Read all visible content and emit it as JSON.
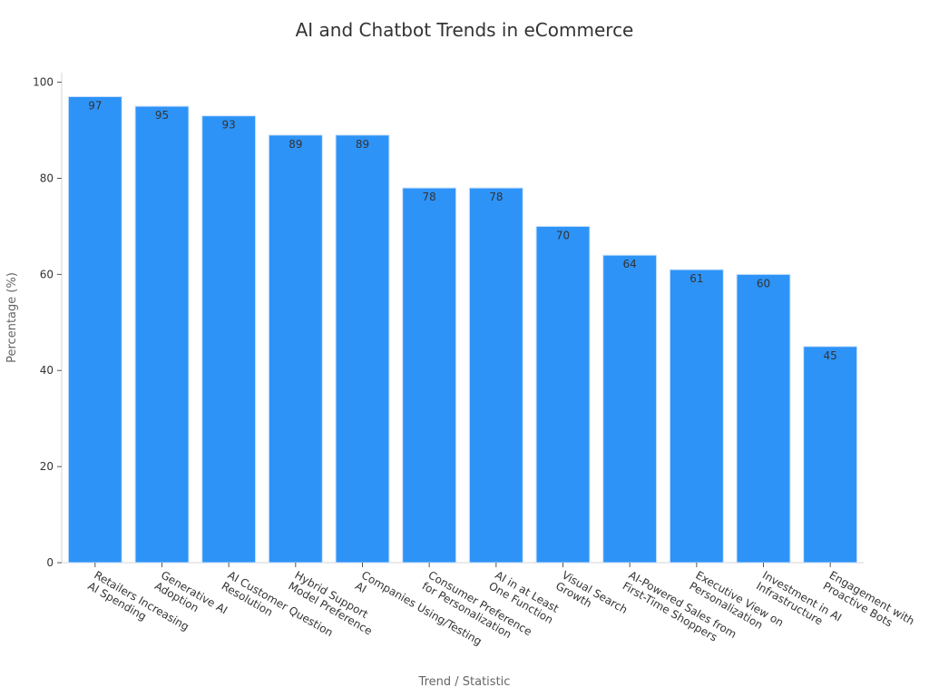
{
  "chart_data": {
    "type": "bar",
    "title": "AI and Chatbot Trends in eCommerce",
    "x_label": "Trend / Statistic",
    "y_label": "Percentage (%)",
    "categories": [
      "Retailers Increasing\nAI Spending",
      "Generative AI\nAdoption",
      "AI Customer Question\nResolution",
      "Hybrid Support\nModel Preference",
      "Companies Using/Testing\nAI",
      "Consumer Preference\nfor Personalization",
      "AI in at Least\nOne Function",
      "Visual Search\nGrowth",
      "AI-Powered Sales from\nFirst-Time Shoppers",
      "Executive View on\nPersonalization",
      "Investment in AI\nInfrastructure",
      "Engagement with\nProactive Bots"
    ],
    "values": [
      97,
      95,
      93,
      89,
      89,
      78,
      78,
      70,
      64,
      61,
      60,
      45
    ],
    "color": "#2e93f7",
    "ylim": [
      0,
      102
    ],
    "yticks": [
      0,
      20,
      40,
      60,
      80,
      100
    ],
    "grid": false
  }
}
